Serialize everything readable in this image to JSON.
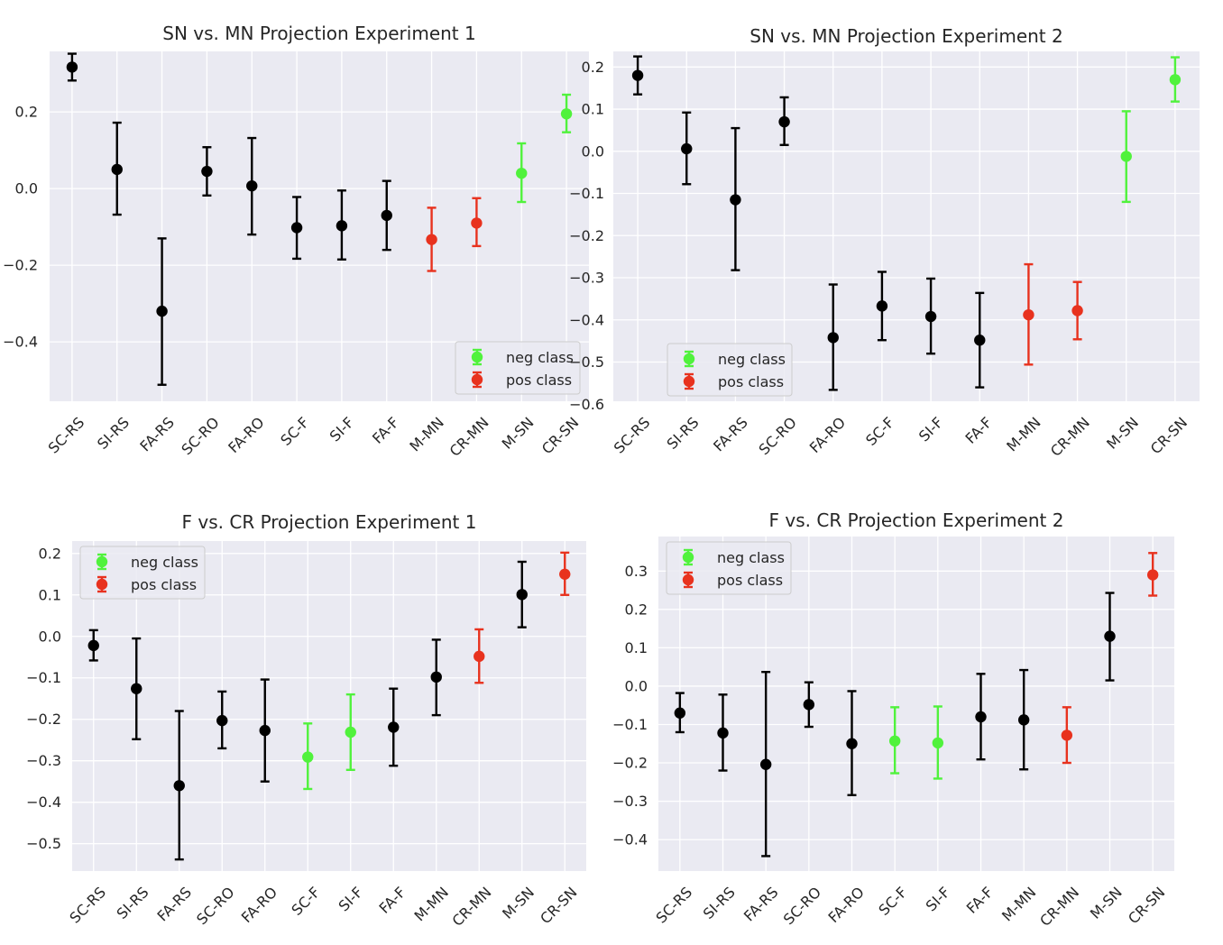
{
  "colors": {
    "background": "#eaeaf2",
    "grid": "#ffffff",
    "black": "#000000",
    "neg": "#50f23c",
    "pos": "#e8321e"
  },
  "legend_labels": {
    "neg": "neg class",
    "pos": "pos class"
  },
  "chart_data": [
    {
      "type": "scatter",
      "title": "SN vs. MN Projection Experiment 1",
      "categories": [
        "SC-RS",
        "SI-RS",
        "FA-RS",
        "SC-RO",
        "FA-RO",
        "SC-F",
        "SI-F",
        "FA-F",
        "M-MN",
        "CR-MN",
        "M-SN",
        "CR-SN"
      ],
      "values": [
        0.317,
        0.05,
        -0.32,
        0.045,
        0.007,
        -0.102,
        -0.097,
        -0.07,
        -0.133,
        -0.09,
        0.04,
        0.195
      ],
      "lower": [
        0.282,
        -0.068,
        -0.512,
        -0.018,
        -0.12,
        -0.183,
        -0.185,
        -0.16,
        -0.215,
        -0.15,
        -0.035,
        0.147
      ],
      "upper": [
        0.352,
        0.172,
        -0.13,
        0.108,
        0.132,
        -0.022,
        -0.005,
        0.02,
        -0.05,
        -0.025,
        0.118,
        0.245
      ],
      "classes": [
        "none",
        "none",
        "none",
        "none",
        "none",
        "none",
        "none",
        "none",
        "pos",
        "pos",
        "neg",
        "neg"
      ],
      "yticks": [
        -0.4,
        -0.2,
        0.0,
        0.2
      ],
      "ytick_labels": [
        "−0.4",
        "−0.2",
        "0.0",
        "0.2"
      ],
      "ylim": [
        -0.555,
        0.358
      ],
      "legend": "lower right",
      "grid": true
    },
    {
      "type": "scatter",
      "title": "SN vs. MN Projection Experiment 2",
      "categories": [
        "SC-RS",
        "SI-RS",
        "FA-RS",
        "SC-RO",
        "FA-RO",
        "SC-F",
        "SI-F",
        "FA-F",
        "M-MN",
        "CR-MN",
        "M-SN",
        "CR-SN"
      ],
      "values": [
        0.18,
        0.006,
        -0.115,
        0.07,
        -0.442,
        -0.367,
        -0.392,
        -0.448,
        -0.388,
        -0.378,
        -0.012,
        0.17
      ],
      "lower": [
        0.135,
        -0.078,
        -0.282,
        0.015,
        -0.566,
        -0.448,
        -0.48,
        -0.56,
        -0.506,
        -0.446,
        -0.12,
        0.118
      ],
      "upper": [
        0.225,
        0.092,
        0.055,
        0.128,
        -0.316,
        -0.286,
        -0.302,
        -0.336,
        -0.268,
        -0.31,
        0.095,
        0.223
      ],
      "classes": [
        "none",
        "none",
        "none",
        "none",
        "none",
        "none",
        "none",
        "none",
        "pos",
        "pos",
        "neg",
        "neg"
      ],
      "yticks": [
        -0.6,
        -0.5,
        -0.4,
        -0.3,
        -0.2,
        -0.1,
        0.0,
        0.1,
        0.2
      ],
      "ytick_labels": [
        "−0.6",
        "−0.5",
        "−0.4",
        "−0.3",
        "−0.2",
        "−0.1",
        "0.0",
        "0.1",
        "0.2"
      ],
      "ylim": [
        -0.593,
        0.237
      ],
      "legend": "lower left",
      "grid": true
    },
    {
      "type": "scatter",
      "title": "F vs. CR Projection Experiment 1",
      "categories": [
        "SC-RS",
        "SI-RS",
        "FA-RS",
        "SC-RO",
        "FA-RO",
        "SC-F",
        "SI-F",
        "FA-F",
        "M-MN",
        "CR-MN",
        "M-SN",
        "CR-SN"
      ],
      "values": [
        -0.022,
        -0.126,
        -0.36,
        -0.203,
        -0.227,
        -0.291,
        -0.231,
        -0.219,
        -0.098,
        -0.048,
        0.101,
        0.15
      ],
      "lower": [
        -0.058,
        -0.248,
        -0.538,
        -0.27,
        -0.35,
        -0.368,
        -0.322,
        -0.312,
        -0.19,
        -0.112,
        0.022,
        0.1
      ],
      "upper": [
        0.015,
        -0.005,
        -0.18,
        -0.133,
        -0.104,
        -0.21,
        -0.14,
        -0.126,
        -0.008,
        0.017,
        0.18,
        0.202
      ],
      "classes": [
        "none",
        "none",
        "none",
        "none",
        "none",
        "neg",
        "neg",
        "none",
        "none",
        "pos",
        "none",
        "pos"
      ],
      "yticks": [
        -0.5,
        -0.4,
        -0.3,
        -0.2,
        -0.1,
        0.0,
        0.1,
        0.2
      ],
      "ytick_labels": [
        "−0.5",
        "−0.4",
        "−0.3",
        "−0.2",
        "−0.1",
        "0.0",
        "0.1",
        "0.2"
      ],
      "ylim": [
        -0.566,
        0.23
      ],
      "legend": "upper left",
      "grid": true
    },
    {
      "type": "scatter",
      "title": "F vs. CR Projection Experiment 2",
      "categories": [
        "SC-RS",
        "SI-RS",
        "FA-RS",
        "SC-RO",
        "FA-RO",
        "SC-F",
        "SI-F",
        "FA-F",
        "M-MN",
        "CR-MN",
        "M-SN",
        "CR-SN"
      ],
      "values": [
        -0.07,
        -0.122,
        -0.204,
        -0.048,
        -0.15,
        -0.143,
        -0.148,
        -0.08,
        -0.088,
        -0.128,
        0.13,
        0.29
      ],
      "lower": [
        -0.12,
        -0.22,
        -0.443,
        -0.106,
        -0.284,
        -0.227,
        -0.241,
        -0.191,
        -0.217,
        -0.2,
        0.015,
        0.236
      ],
      "upper": [
        -0.018,
        -0.022,
        0.037,
        0.01,
        -0.013,
        -0.055,
        -0.053,
        0.032,
        0.042,
        -0.055,
        0.243,
        0.347
      ],
      "classes": [
        "none",
        "none",
        "none",
        "none",
        "none",
        "neg",
        "neg",
        "none",
        "none",
        "pos",
        "none",
        "pos"
      ],
      "yticks": [
        -0.4,
        -0.3,
        -0.2,
        -0.1,
        0.0,
        0.1,
        0.2,
        0.3
      ],
      "ytick_labels": [
        "−0.4",
        "−0.3",
        "−0.2",
        "−0.1",
        "0.0",
        "0.1",
        "0.2",
        "0.3"
      ],
      "ylim": [
        -0.482,
        0.39
      ],
      "legend": "upper left",
      "grid": true
    }
  ]
}
